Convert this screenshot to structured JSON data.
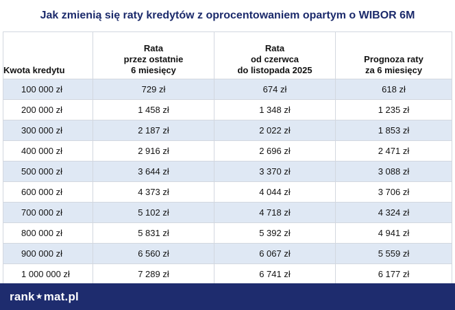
{
  "title": "Jak zmienią się raty kredytów z oprocentowaniem opartym o WIBOR 6M",
  "chart_data": {
    "type": "table",
    "columns": [
      [
        "Kwota kredytu"
      ],
      [
        "Rata",
        "przez ostatnie",
        "6 miesięcy"
      ],
      [
        "Rata",
        "od czerwca",
        "do listopada 2025"
      ],
      [
        "Prognoza raty",
        "za 6 miesięcy"
      ]
    ],
    "rows": [
      [
        "100 000 zł",
        "729 zł",
        "674 zł",
        "618 zł"
      ],
      [
        "200 000 zł",
        "1 458 zł",
        "1 348 zł",
        "1 235 zł"
      ],
      [
        "300 000 zł",
        "2 187 zł",
        "2 022 zł",
        "1 853 zł"
      ],
      [
        "400 000 zł",
        "2 916 zł",
        "2 696 zł",
        "2 471 zł"
      ],
      [
        "500 000 zł",
        "3 644 zł",
        "3 370 zł",
        "3 088 zł"
      ],
      [
        "600 000 zł",
        "4 373 zł",
        "4 044 zł",
        "3 706 zł"
      ],
      [
        "700 000 zł",
        "5 102 zł",
        "4 718 zł",
        "4 324 zł"
      ],
      [
        "800 000 zł",
        "5 831 zł",
        "5 392 zł",
        "4 941 zł"
      ],
      [
        "900 000 zł",
        "6 560 zł",
        "6 067 zł",
        "5 559 zł"
      ],
      [
        "1 000 000 zł",
        "7 289 zł",
        "6 741 zł",
        "6 177 zł"
      ]
    ]
  },
  "footer": {
    "logo_left": "rank",
    "logo_star": "★",
    "logo_right": "mat.pl"
  },
  "colors": {
    "title": "#1b2a6b",
    "row_shade": "#dfe8f4",
    "footer_bg": "#1e2c6e"
  }
}
